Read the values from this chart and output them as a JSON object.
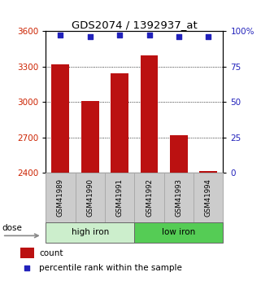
{
  "title": "GDS2074 / 1392937_at",
  "samples": [
    "GSM41989",
    "GSM41990",
    "GSM41991",
    "GSM41992",
    "GSM41993",
    "GSM41994"
  ],
  "counts": [
    3320,
    3010,
    3240,
    3390,
    2720,
    2415
  ],
  "percentile_ranks": [
    97,
    96,
    97,
    97,
    96,
    96
  ],
  "ylim_left": [
    2400,
    3600
  ],
  "ylim_right": [
    0,
    100
  ],
  "yticks_left": [
    2400,
    2700,
    3000,
    3300,
    3600
  ],
  "yticks_right": [
    0,
    25,
    50,
    75,
    100
  ],
  "ytick_labels_right": [
    "0",
    "25",
    "50",
    "75",
    "100%"
  ],
  "bar_color": "#bb1111",
  "dot_color": "#2222bb",
  "groups": [
    {
      "label": "high iron",
      "indices": [
        0,
        1,
        2
      ],
      "color": "#cceecc"
    },
    {
      "label": "low iron",
      "indices": [
        3,
        4,
        5
      ],
      "color": "#55cc55"
    }
  ],
  "dose_label": "dose",
  "legend_count_label": "count",
  "legend_pct_label": "percentile rank within the sample",
  "left_tick_color": "#cc2200",
  "right_tick_color": "#2222bb",
  "sample_box_color": "#cccccc",
  "sample_box_edge": "#aaaaaa",
  "bar_width": 0.6
}
